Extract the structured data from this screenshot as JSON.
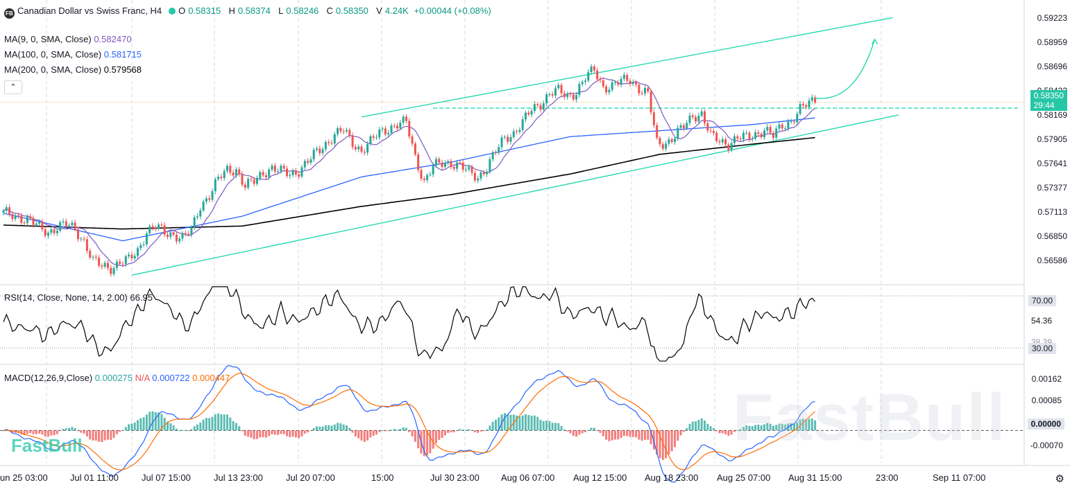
{
  "header": {
    "logo_text": "FB",
    "title": "Canadian Dollar vs Swiss Franc, H4",
    "open_label": "O",
    "open": "0.58315",
    "high_label": "H",
    "high": "0.58374",
    "low_label": "L",
    "low": "0.58246",
    "close_label": "C",
    "close": "0.58350",
    "volume_label": "V",
    "volume": "4.24K",
    "change": "+0.00044 (+0.08%)"
  },
  "moving_averages": [
    {
      "label": "MA(9, 0, SMA, Close)",
      "value": "0.582470",
      "color": "#7e57c2"
    },
    {
      "label": "MA(100, 0, SMA, Close)",
      "value": "0.581715",
      "color": "#2962ff"
    },
    {
      "label": "MA(200, 0, SMA, Close)",
      "value": "0.579568",
      "color": "#000000"
    }
  ],
  "collapse_icon": "chevron-up-icon",
  "collapse_glyph": "⌃",
  "price_axis": [
    "0.59223",
    "0.58959",
    "0.58696",
    "0.58432",
    "0.58169",
    "0.57905",
    "0.57641",
    "0.57377",
    "0.57113",
    "0.56850",
    "0.56586"
  ],
  "current_price_badge": {
    "price": "0.58350",
    "countdown": "29:44",
    "color": "#26c6a6"
  },
  "rsi": {
    "label": "RSI(14, Close, None, 14, 2.00)",
    "value": "66.95",
    "axis": [
      "70.00",
      "54.36",
      "38.39",
      "30.00"
    ]
  },
  "macd": {
    "label": "MACD(12,26,9,Close)",
    "histogram": "0.000275",
    "na": "N/A",
    "macd_line": "0.000722",
    "signal": "0.000447",
    "axis": [
      "0.00162",
      "0.00085",
      "0.00000",
      "-0.00070"
    ]
  },
  "time_axis": [
    "un 25 03:00",
    "Jul 01 11:00",
    "Jul 07 15:00",
    "Jul 13 23:00",
    "Jul 20 07:00",
    "15:00",
    "Jul 30 23:00",
    "Aug 06 07:00",
    "Aug 12 15:00",
    "Aug 18 23:00",
    "Aug 25 07:00",
    "Aug 31 15:00",
    "23:00",
    "Sep 11 07:00"
  ],
  "watermark_small": "FastBull",
  "watermark_large": "FastBull",
  "settings_icon": "gear-icon",
  "settings_glyph": "⚙",
  "colors": {
    "up": "#26a69a",
    "down": "#ef5350",
    "channel": "#26d9b0",
    "ma9": "#7e57c2",
    "ma100": "#2962ff",
    "ma200": "#000000",
    "macd_line": "#2962ff",
    "signal_line": "#ff6d00",
    "hist_up": "#26a69a",
    "hist_down": "#ef5350"
  },
  "chart_data": {
    "type": "candlestick",
    "symbol": "CADCHF",
    "timeframe": "H4",
    "ylim": [
      0.5646,
      0.5935
    ],
    "x_ticks": [
      "un 25 03:00",
      "Jul 01 11:00",
      "Jul 07 15:00",
      "Jul 13 23:00",
      "Jul 20 07:00",
      "15:00",
      "Jul 30 23:00",
      "Aug 06 07:00",
      "Aug 12 15:00",
      "Aug 18 23:00",
      "Aug 25 07:00",
      "Aug 31 15:00",
      "23:00",
      "Sep 11 07:00"
    ],
    "close_path": [
      [
        0,
        0.5718
      ],
      [
        3,
        0.5716
      ],
      [
        6,
        0.5714
      ],
      [
        9,
        0.571
      ],
      [
        12,
        0.5703
      ],
      [
        15,
        0.5699
      ],
      [
        18,
        0.5704
      ],
      [
        21,
        0.5706
      ],
      [
        24,
        0.5702
      ],
      [
        27,
        0.569
      ],
      [
        30,
        0.5669
      ],
      [
        33,
        0.5664
      ],
      [
        36,
        0.5663
      ],
      [
        39,
        0.5668
      ],
      [
        42,
        0.567
      ],
      [
        45,
        0.568
      ],
      [
        48,
        0.57
      ],
      [
        51,
        0.5704
      ],
      [
        54,
        0.5698
      ],
      [
        57,
        0.5697
      ],
      [
        60,
        0.5693
      ],
      [
        63,
        0.57
      ],
      [
        66,
        0.5726
      ],
      [
        69,
        0.5737
      ],
      [
        72,
        0.5752
      ],
      [
        75,
        0.5762
      ],
      [
        78,
        0.5763
      ],
      [
        81,
        0.5745
      ],
      [
        84,
        0.575
      ],
      [
        87,
        0.576
      ],
      [
        90,
        0.5764
      ],
      [
        93,
        0.576
      ],
      [
        96,
        0.5758
      ],
      [
        99,
        0.5762
      ],
      [
        102,
        0.577
      ],
      [
        105,
        0.578
      ],
      [
        108,
        0.5789
      ],
      [
        111,
        0.5798
      ],
      [
        114,
        0.5802
      ],
      [
        117,
        0.579
      ],
      [
        120,
        0.5782
      ],
      [
        123,
        0.579
      ],
      [
        126,
        0.58
      ],
      [
        129,
        0.5805
      ],
      [
        132,
        0.5808
      ],
      [
        135,
        0.581
      ],
      [
        138,
        0.5776
      ],
      [
        141,
        0.575
      ],
      [
        144,
        0.5765
      ],
      [
        147,
        0.5769
      ],
      [
        150,
        0.577
      ],
      [
        153,
        0.5766
      ],
      [
        156,
        0.5759
      ],
      [
        159,
        0.5755
      ],
      [
        162,
        0.5765
      ],
      [
        165,
        0.578
      ],
      [
        168,
        0.5795
      ],
      [
        171,
        0.58
      ],
      [
        174,
        0.581
      ],
      [
        177,
        0.5823
      ],
      [
        180,
        0.583
      ],
      [
        183,
        0.584
      ],
      [
        186,
        0.5842
      ],
      [
        189,
        0.5837
      ],
      [
        192,
        0.5842
      ],
      [
        195,
        0.5855
      ],
      [
        198,
        0.5864
      ],
      [
        201,
        0.5847
      ],
      [
        204,
        0.5847
      ],
      [
        207,
        0.5852
      ],
      [
        210,
        0.5855
      ],
      [
        213,
        0.5845
      ],
      [
        216,
        0.5838
      ],
      [
        219,
        0.579
      ],
      [
        222,
        0.579
      ],
      [
        225,
        0.5796
      ],
      [
        228,
        0.5806
      ],
      [
        231,
        0.5818
      ],
      [
        234,
        0.5819
      ],
      [
        237,
        0.5796
      ],
      [
        240,
        0.5792
      ],
      [
        243,
        0.5789
      ],
      [
        246,
        0.5794
      ],
      [
        249,
        0.5795
      ],
      [
        252,
        0.5799
      ],
      [
        255,
        0.5803
      ],
      [
        258,
        0.5796
      ],
      [
        261,
        0.5808
      ],
      [
        264,
        0.5812
      ],
      [
        267,
        0.5823
      ],
      [
        270,
        0.583
      ],
      [
        272,
        0.5835
      ]
    ],
    "projection_path": [
      [
        272,
        0.5835
      ],
      [
        282,
        0.5832
      ],
      [
        288,
        0.5855
      ],
      [
        292,
        0.5895
      ]
    ],
    "ma100_path": [
      [
        0,
        0.5718
      ],
      [
        40,
        0.569
      ],
      [
        80,
        0.5715
      ],
      [
        120,
        0.5755
      ],
      [
        150,
        0.577
      ],
      [
        190,
        0.5796
      ],
      [
        220,
        0.5802
      ],
      [
        250,
        0.5808
      ],
      [
        272,
        0.5815
      ]
    ],
    "ma200_path": [
      [
        0,
        0.5706
      ],
      [
        40,
        0.5702
      ],
      [
        80,
        0.5705
      ],
      [
        120,
        0.5725
      ],
      [
        150,
        0.5737
      ],
      [
        190,
        0.5758
      ],
      [
        220,
        0.5778
      ],
      [
        250,
        0.5788
      ],
      [
        272,
        0.5795
      ]
    ],
    "channel_upper": [
      [
        120,
        0.5816
      ],
      [
        298,
        0.5917
      ]
    ],
    "channel_lower": [
      [
        43,
        0.5655
      ],
      [
        300,
        0.5818
      ]
    ],
    "resistance_level": [
      [
        144,
        0.5825
      ],
      [
        340,
        0.5825
      ]
    ],
    "rsi_range": [
      18,
      78
    ],
    "rsi_levels": [
      70,
      30
    ],
    "macd_range": [
      -0.0009,
      0.0018
    ]
  }
}
